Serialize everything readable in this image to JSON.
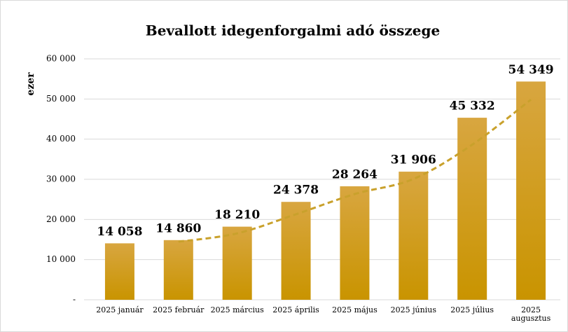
{
  "chart_data": {
    "type": "bar",
    "title": "Bevallott idegenforgalmi adó összege",
    "ylabel": "ezer",
    "categories": [
      "2025 január",
      "2025 február",
      "2025 március",
      "2025 április",
      "2025 május",
      "2025 június",
      "2025 július",
      "2025\naugusztus"
    ],
    "values": [
      14058,
      14860,
      18210,
      24378,
      28264,
      31906,
      45332,
      54349
    ],
    "value_labels": [
      "14 058",
      "14 860",
      "18 210",
      "24 378",
      "28 264",
      "31 906",
      "45 332",
      "54 349"
    ],
    "color": "#cf9b1e",
    "ylim": [
      0,
      60000
    ],
    "yticks": [
      {
        "value": 0,
        "label": "-"
      },
      {
        "value": 10000,
        "label": "10 000"
      },
      {
        "value": 20000,
        "label": "20 000"
      },
      {
        "value": 30000,
        "label": "30 000"
      },
      {
        "value": 40000,
        "label": "40 000"
      },
      {
        "value": 50000,
        "label": "50 000"
      },
      {
        "value": 60000,
        "label": "60 000"
      }
    ],
    "grid": true,
    "trendline": {
      "type": "moving_average",
      "period": 2,
      "color": "#c9a12c"
    }
  }
}
